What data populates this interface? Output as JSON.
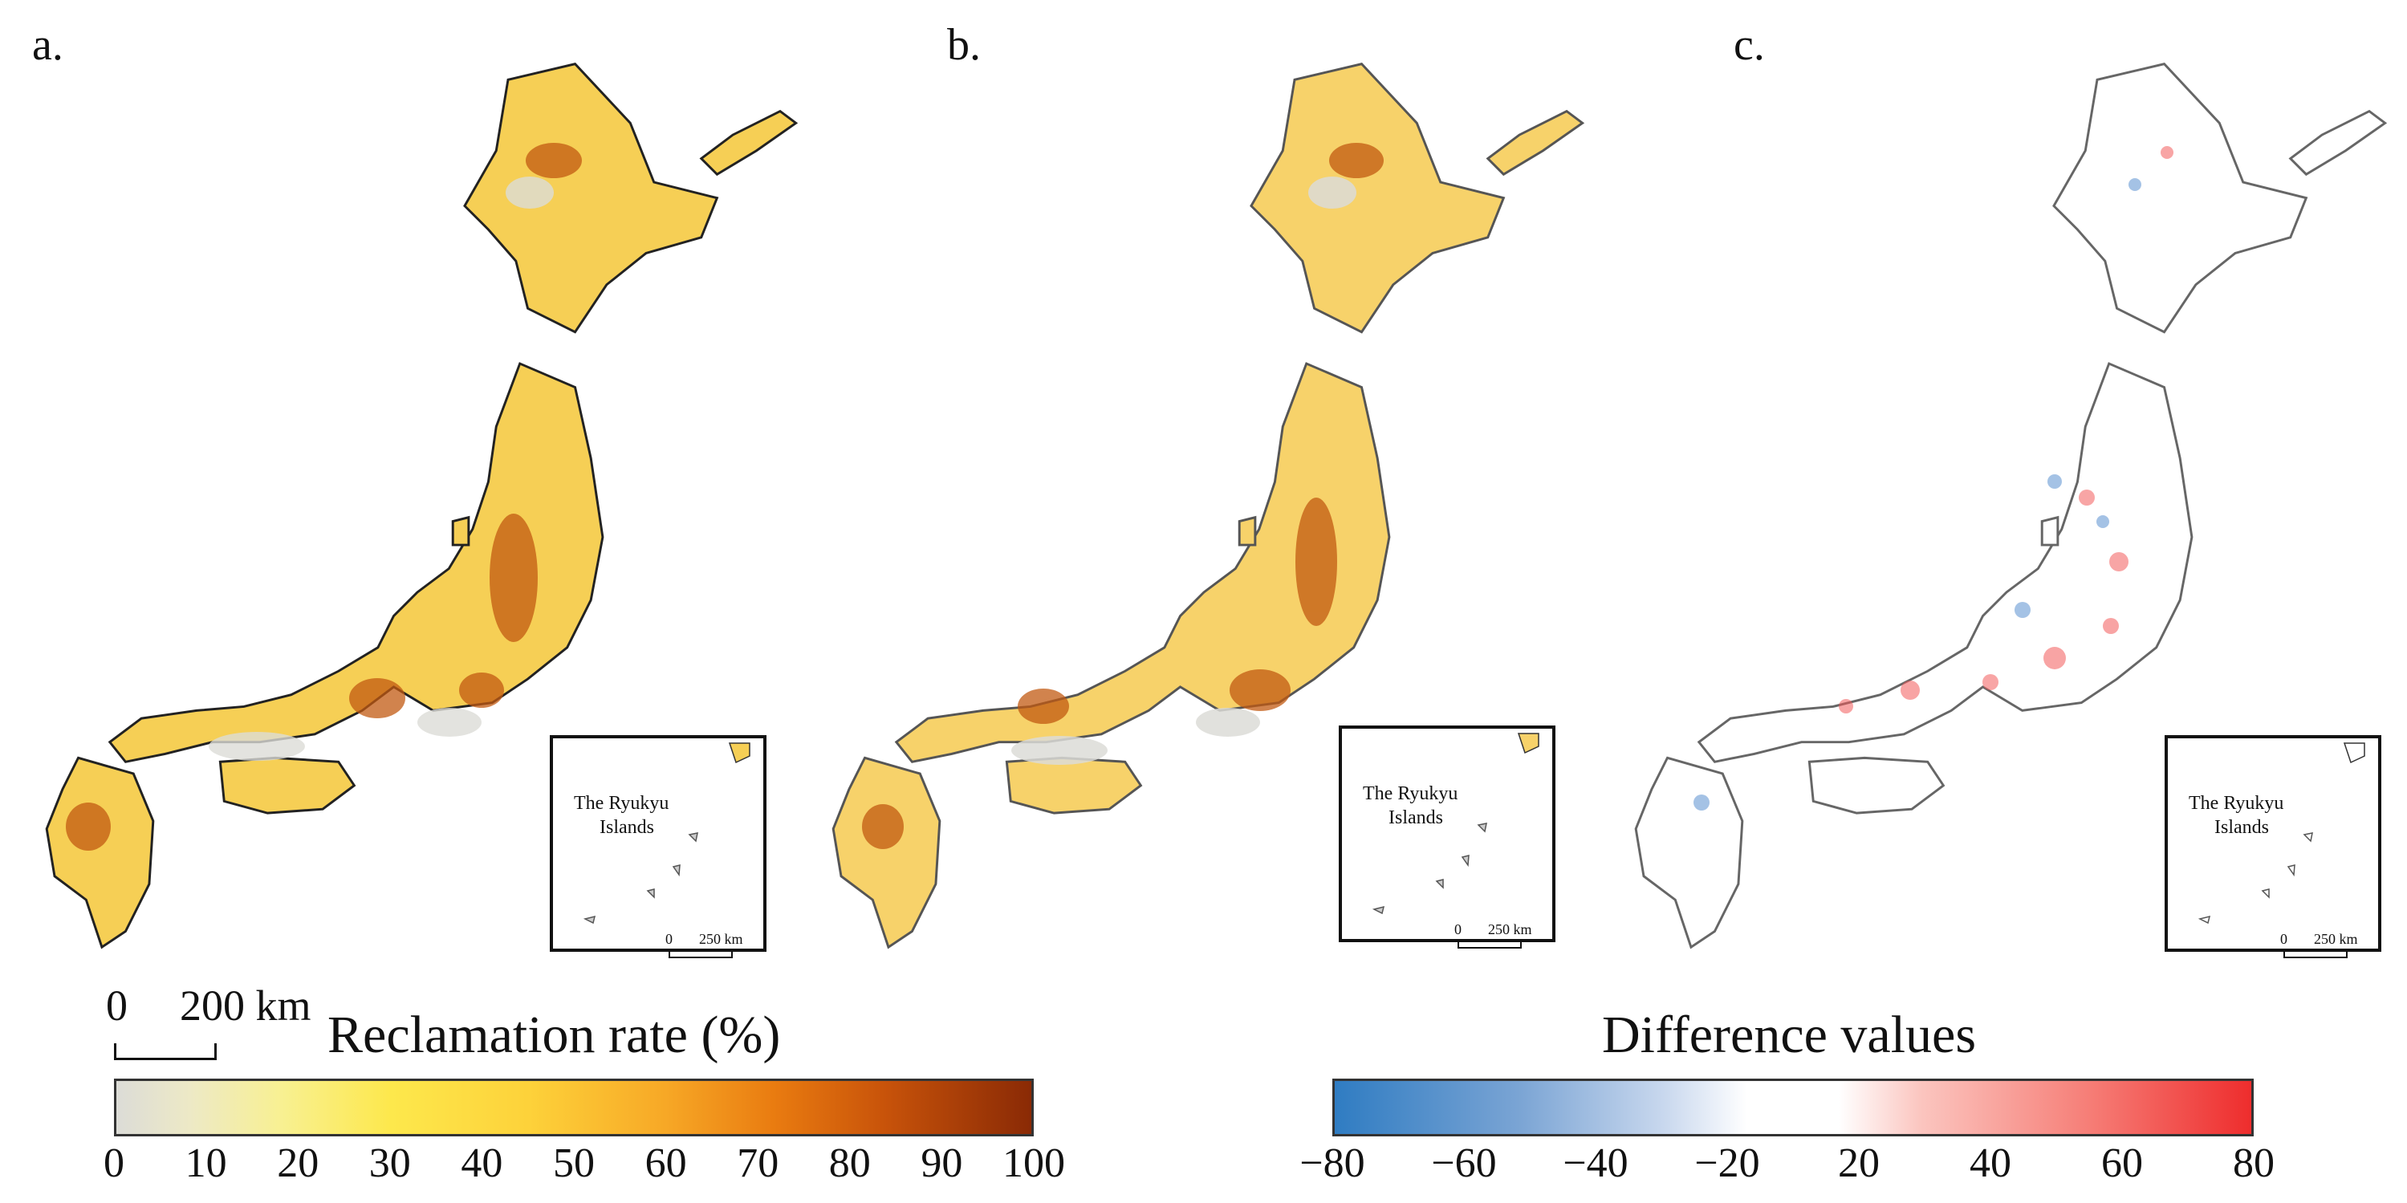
{
  "panels": [
    {
      "label": "a."
    },
    {
      "label": "b."
    },
    {
      "label": "c."
    }
  ],
  "inset": {
    "title_line1": "The Ryukyu",
    "title_line2": "Islands",
    "scale_zero": "0",
    "scale_end": "250 km"
  },
  "main_scale": {
    "zero": "0",
    "end": "200 km"
  },
  "colorbars": [
    {
      "title": "Reclamation rate (%)",
      "ticks": [
        "0",
        "10",
        "20",
        "30",
        "40",
        "50",
        "60",
        "70",
        "80",
        "90",
        "100"
      ],
      "colors": [
        "#dcdcd7",
        "#f8f092",
        "#fde84c",
        "#f7a826",
        "#e97b10",
        "#8a2a05"
      ]
    },
    {
      "title": "Difference values",
      "ticks": [
        "−80",
        "−60",
        "−40",
        "−20",
        "20",
        "40",
        "60",
        "80"
      ],
      "colors": [
        "#2f7cc2",
        "#ffffff",
        "#ee2d2d"
      ]
    }
  ]
}
